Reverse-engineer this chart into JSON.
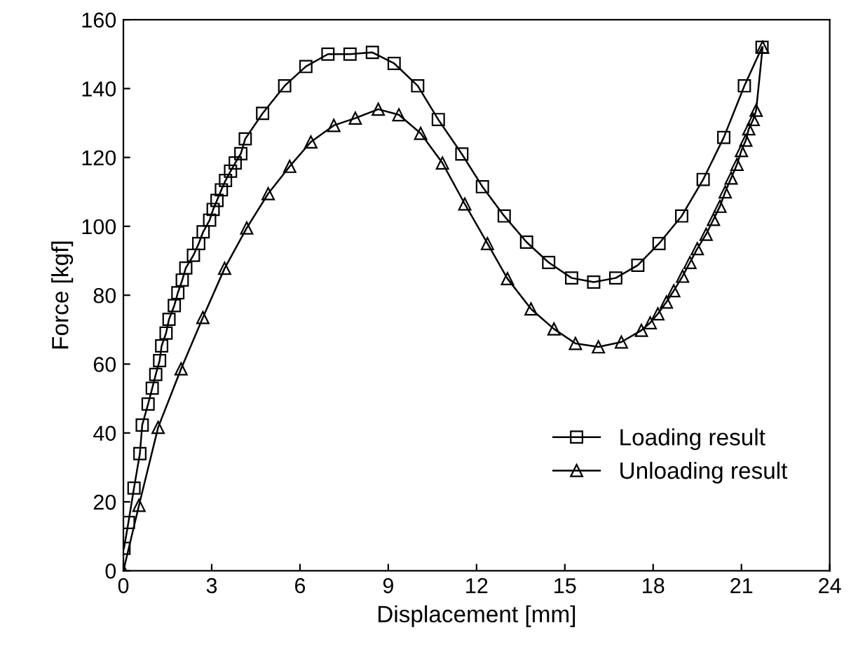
{
  "chart_data": {
    "type": "line",
    "xlabel": "Displacement [mm]",
    "ylabel": "Force [kgf]",
    "xlim": [
      0,
      24
    ],
    "ylim": [
      0,
      160
    ],
    "xticks": [
      0,
      3,
      6,
      9,
      12,
      15,
      18,
      21,
      24
    ],
    "yticks": [
      0,
      20,
      40,
      60,
      80,
      100,
      120,
      140,
      160
    ],
    "grid": false,
    "legend": "bottom right",
    "line_style": "solid",
    "series": [
      {
        "name": "Loading result",
        "color": "#000000",
        "marker": "square",
        "x": [
          0.02,
          0.17,
          0.36,
          0.56,
          0.64,
          0.84,
          0.98,
          1.1,
          1.23,
          1.3,
          1.45,
          1.55,
          1.73,
          1.85,
          2.0,
          2.12,
          2.38,
          2.56,
          2.71,
          2.93,
          3.05,
          3.18,
          3.33,
          3.47,
          3.64,
          3.8,
          3.99,
          4.14,
          4.73,
          5.48,
          6.2,
          6.95,
          7.7,
          8.46,
          9.2,
          10.0,
          10.7,
          11.5,
          12.2,
          12.94,
          13.7,
          14.45,
          15.23,
          15.98,
          16.73,
          17.48,
          18.2,
          18.97,
          19.7,
          20.4,
          21.1,
          21.7
        ],
        "values": [
          6.5,
          14,
          24,
          34,
          42.3,
          48.4,
          53,
          57,
          61,
          65.3,
          69,
          73,
          77,
          80.7,
          84.4,
          87.9,
          91.6,
          95,
          98.4,
          101.8,
          104.9,
          107.5,
          110.6,
          113.3,
          116,
          118.4,
          121.1,
          125.4,
          132.8,
          140.8,
          146.4,
          150,
          150,
          150.5,
          147.3,
          140.8,
          131,
          121,
          111.5,
          103,
          95.4,
          89.5,
          85,
          83.8,
          85,
          88.7,
          95,
          103,
          113.6,
          125.8,
          140.8,
          152
        ]
      },
      {
        "name": "Unloading result",
        "color": "#000000",
        "marker": "triangle",
        "x": [
          0,
          0.53,
          1.18,
          1.96,
          2.7,
          3.44,
          4.19,
          4.92,
          5.65,
          6.37,
          7.15,
          7.88,
          8.66,
          9.36,
          10.1,
          10.84,
          11.6,
          12.37,
          13.05,
          13.85,
          14.63,
          15.36,
          16.14,
          16.92,
          17.6,
          17.9,
          18.16,
          18.45,
          18.7,
          19.0,
          19.25,
          19.5,
          19.8,
          20.05,
          20.27,
          20.45,
          20.65,
          20.85,
          21.0,
          21.15,
          21.25,
          21.4,
          21.5,
          21.72
        ],
        "values": [
          0,
          19,
          41.6,
          58.6,
          73.5,
          87.8,
          99.5,
          109.5,
          117.4,
          124.5,
          129.3,
          131.4,
          134,
          132.4,
          127,
          118.4,
          106.5,
          95,
          84.8,
          76,
          70.2,
          66,
          65,
          66.4,
          69.8,
          72,
          74.6,
          78,
          81.3,
          85.5,
          89.5,
          93.5,
          97.7,
          102,
          105.8,
          110,
          114,
          118,
          122,
          125,
          128.3,
          131,
          133.7,
          152
        ]
      }
    ]
  }
}
